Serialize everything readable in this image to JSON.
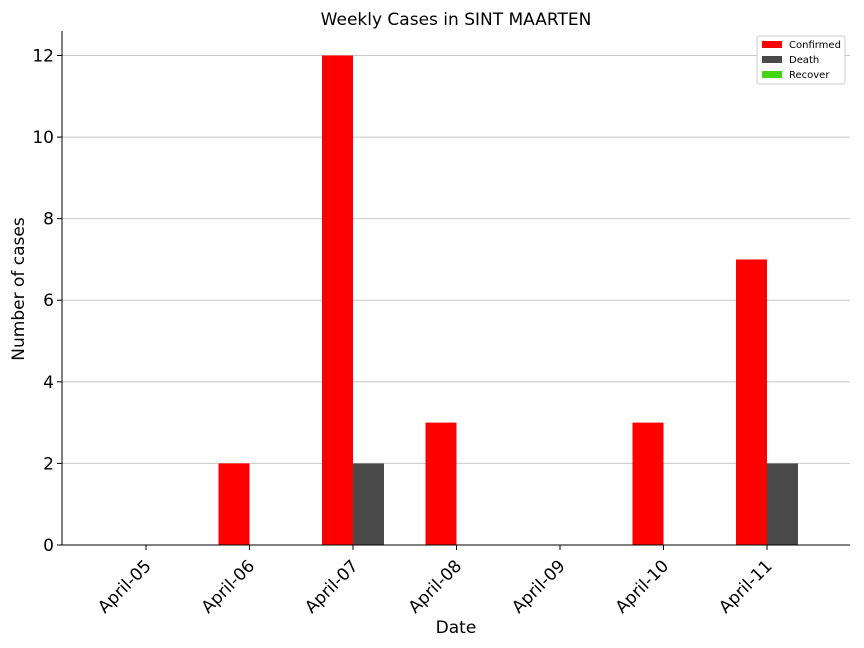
{
  "chart_data": {
    "type": "bar",
    "title": "Weekly Cases in SINT MAARTEN",
    "xlabel": "Date",
    "ylabel": "Number of cases",
    "categories": [
      "April-05",
      "April-06",
      "April-07",
      "April-08",
      "April-09",
      "April-10",
      "April-11"
    ],
    "series": [
      {
        "name": "Confirmed",
        "color": "#ff0000",
        "values": [
          0,
          2,
          12,
          3,
          0,
          3,
          7
        ]
      },
      {
        "name": "Death",
        "color": "#4a4a4a",
        "values": [
          0,
          0,
          2,
          0,
          0,
          0,
          2
        ]
      },
      {
        "name": "Recover",
        "color": "#44d411",
        "values": [
          0,
          0,
          0,
          0,
          0,
          0,
          0
        ]
      }
    ],
    "ylim": [
      0,
      12.6
    ],
    "yticks": [
      0,
      2,
      4,
      6,
      8,
      10,
      12
    ],
    "grid": "horizontal",
    "legend_position": "top-right"
  }
}
